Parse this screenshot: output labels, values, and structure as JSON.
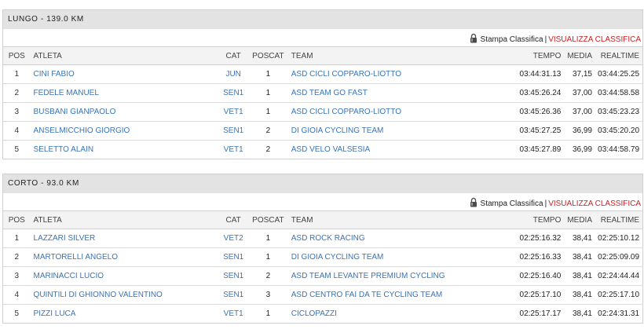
{
  "columns": {
    "pos": "POS",
    "atleta": "ATLETA",
    "cat": "CAT",
    "poscat": "POSCAT",
    "team": "TEAM",
    "tempo": "TEMPO",
    "media": "MEDIA",
    "realtime": "REALTIME"
  },
  "actions": {
    "print_label": "Stampa Classifica",
    "separator": "|",
    "visualize_label": "VISUALIZZA CLASSIFICA"
  },
  "colors": {
    "header_bg": "#e3e3e3",
    "link": "#3a73b5",
    "accent_red": "#cc2222"
  },
  "sections": [
    {
      "title": "LUNGO - 139.0 KM",
      "rows": [
        {
          "pos": "1",
          "atleta": "CINI FABIO",
          "cat": "JUN",
          "poscat": "1",
          "team": "ASD CICLI COPPARO-LIOTTO",
          "tempo": "03:44:31.13",
          "media": "37,15",
          "realtime": "03:44:25.25"
        },
        {
          "pos": "2",
          "atleta": "FEDELE MANUEL",
          "cat": "SEN1",
          "poscat": "1",
          "team": "ASD TEAM GO FAST",
          "tempo": "03:45:26.24",
          "media": "37,00",
          "realtime": "03:44:58.58"
        },
        {
          "pos": "3",
          "atleta": "BUSBANI GIANPAOLO",
          "cat": "VET1",
          "poscat": "1",
          "team": "ASD CICLI COPPARO-LIOTTO",
          "tempo": "03:45:26.36",
          "media": "37,00",
          "realtime": "03:45:23.23"
        },
        {
          "pos": "4",
          "atleta": "ANSELMICCHIO GIORGIO",
          "cat": "SEN1",
          "poscat": "2",
          "team": "DI GIOIA CYCLING TEAM",
          "tempo": "03:45:27.25",
          "media": "36,99",
          "realtime": "03:45:20.20"
        },
        {
          "pos": "5",
          "atleta": "SELETTO ALAIN",
          "cat": "VET1",
          "poscat": "2",
          "team": "ASD VELO VALSESIA",
          "tempo": "03:45:27.89",
          "media": "36,99",
          "realtime": "03:44:58.79"
        }
      ]
    },
    {
      "title": "CORTO - 93.0 KM",
      "rows": [
        {
          "pos": "1",
          "atleta": "LAZZARI SILVER",
          "cat": "VET2",
          "poscat": "1",
          "team": "ASD ROCK RACING",
          "tempo": "02:25:16.32",
          "media": "38,41",
          "realtime": "02:25:10.12"
        },
        {
          "pos": "2",
          "atleta": "MARTORELLI ANGELO",
          "cat": "SEN1",
          "poscat": "1",
          "team": "DI GIOIA CYCLING TEAM",
          "tempo": "02:25:16.33",
          "media": "38,41",
          "realtime": "02:25:09.09"
        },
        {
          "pos": "3",
          "atleta": "MARINACCI LUCIO",
          "cat": "SEN1",
          "poscat": "2",
          "team": "ASD TEAM LEVANTE PREMIUM CYCLING",
          "tempo": "02:25:16.40",
          "media": "38,41",
          "realtime": "02:24:44.44"
        },
        {
          "pos": "4",
          "atleta": "QUINTILI DI GHIONNO VALENTINO",
          "cat": "SEN1",
          "poscat": "3",
          "team": "ASD CENTRO FAI DA TE CYCLING TEAM",
          "tempo": "02:25:17.10",
          "media": "38,41",
          "realtime": "02:25:17.10"
        },
        {
          "pos": "5",
          "atleta": "PIZZI LUCA",
          "cat": "VET1",
          "poscat": "1",
          "team": "CICLOPAZZI",
          "tempo": "02:25:17.17",
          "media": "38,41",
          "realtime": "02:24:31.31"
        }
      ]
    }
  ]
}
